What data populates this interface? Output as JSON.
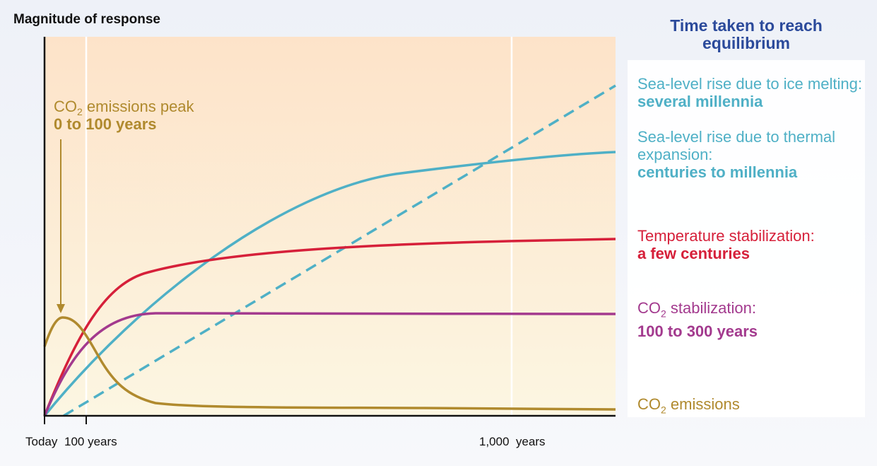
{
  "y_axis_label": "Magnitude of response",
  "x_ticks": [
    "Today",
    "100 years",
    "1,000  years"
  ],
  "peak_annotation": {
    "prefix": "CO",
    "subscript": "2",
    "suffix": " emissions peak",
    "value": "0 to 100 years"
  },
  "legend_title": "Time taken to reach equilibrium",
  "legend": [
    {
      "label": "Sea-level rise due to ice melting:",
      "value": "several millennia",
      "color": "#4fb0c6"
    },
    {
      "label": "Sea-level rise due to thermal",
      "label2": "expansion:",
      "value": "centuries to millennia",
      "color": "#4fb0c6"
    },
    {
      "label": "Temperature stabilization:",
      "value": "a few centuries",
      "color": "#d6203a"
    },
    {
      "label_prefix": "CO",
      "label_sub": "2",
      "label_suffix": " stabilization:",
      "value": "100 to 300 years",
      "color": "#a33a8e"
    },
    {
      "label_prefix": "CO",
      "label_sub": "2",
      "label_suffix": " emissions",
      "color": "#b08a2e"
    }
  ],
  "curves": [
    {
      "name": "co2-emissions",
      "color": "#b08a2e",
      "style": "solid"
    },
    {
      "name": "co2-stabilization",
      "color": "#a33a8e",
      "style": "solid"
    },
    {
      "name": "temperature",
      "color": "#d6203a",
      "style": "solid"
    },
    {
      "name": "thermal-expansion",
      "color": "#4fb0c6",
      "style": "solid"
    },
    {
      "name": "ice-melting",
      "color": "#4fb0c6",
      "style": "dashed"
    }
  ]
}
